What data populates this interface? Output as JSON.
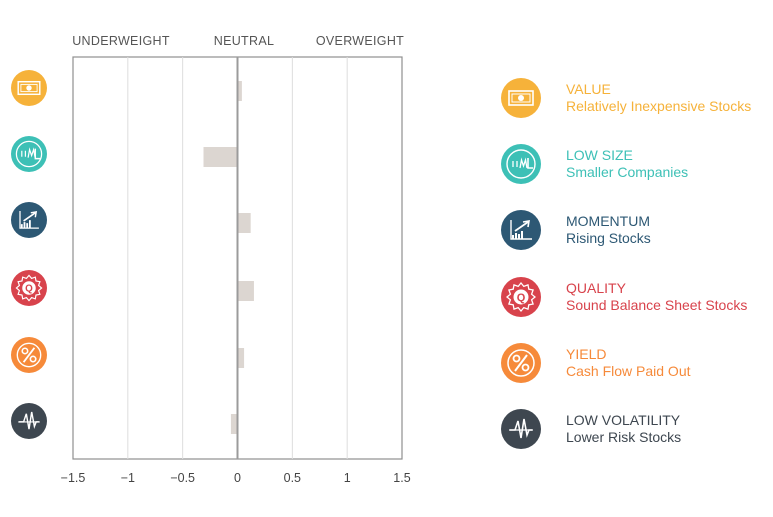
{
  "chart_data": {
    "type": "bar",
    "orientation": "horizontal",
    "categories": [
      "VALUE",
      "LOW SIZE",
      "MOMENTUM",
      "QUALITY",
      "YIELD",
      "LOW VOLATILITY"
    ],
    "values": [
      0.04,
      -0.31,
      0.12,
      0.15,
      0.06,
      -0.06
    ],
    "xlim": [
      -1.5,
      1.5
    ],
    "xticks": [
      -1.5,
      -1,
      -0.5,
      0,
      0.5,
      1,
      1.5
    ],
    "xtick_labels": [
      "−1.5",
      "−1",
      "−0.5",
      "0",
      "0.5",
      "1",
      "1.5"
    ],
    "header_labels": [
      "UNDERWEIGHT",
      "NEUTRAL",
      "OVERWEIGHT"
    ],
    "grid": true,
    "bar_color": "#dcd6d1",
    "zero_line_color": "#9b9b9b"
  },
  "factors": [
    {
      "name": "VALUE",
      "description": "Relatively Inexpensive Stocks",
      "color": "#f6b23a",
      "icon": "dollar-bill-icon"
    },
    {
      "name": "LOW SIZE",
      "description": "Smaller Companies",
      "color": "#3dc0b6",
      "icon": "sml-size-icon"
    },
    {
      "name": "MOMENTUM",
      "description": "Rising Stocks",
      "color": "#2d5874",
      "icon": "rising-chart-icon"
    },
    {
      "name": "QUALITY",
      "description": "Sound Balance Sheet Stocks",
      "color": "#d8434c",
      "icon": "quality-seal-icon"
    },
    {
      "name": "YIELD",
      "description": "Cash Flow Paid Out",
      "color": "#f68a3a",
      "icon": "percent-icon"
    },
    {
      "name": "LOW VOLATILITY",
      "description": "Lower Risk Stocks",
      "color": "#3e4750",
      "icon": "volatility-wave-icon"
    }
  ]
}
